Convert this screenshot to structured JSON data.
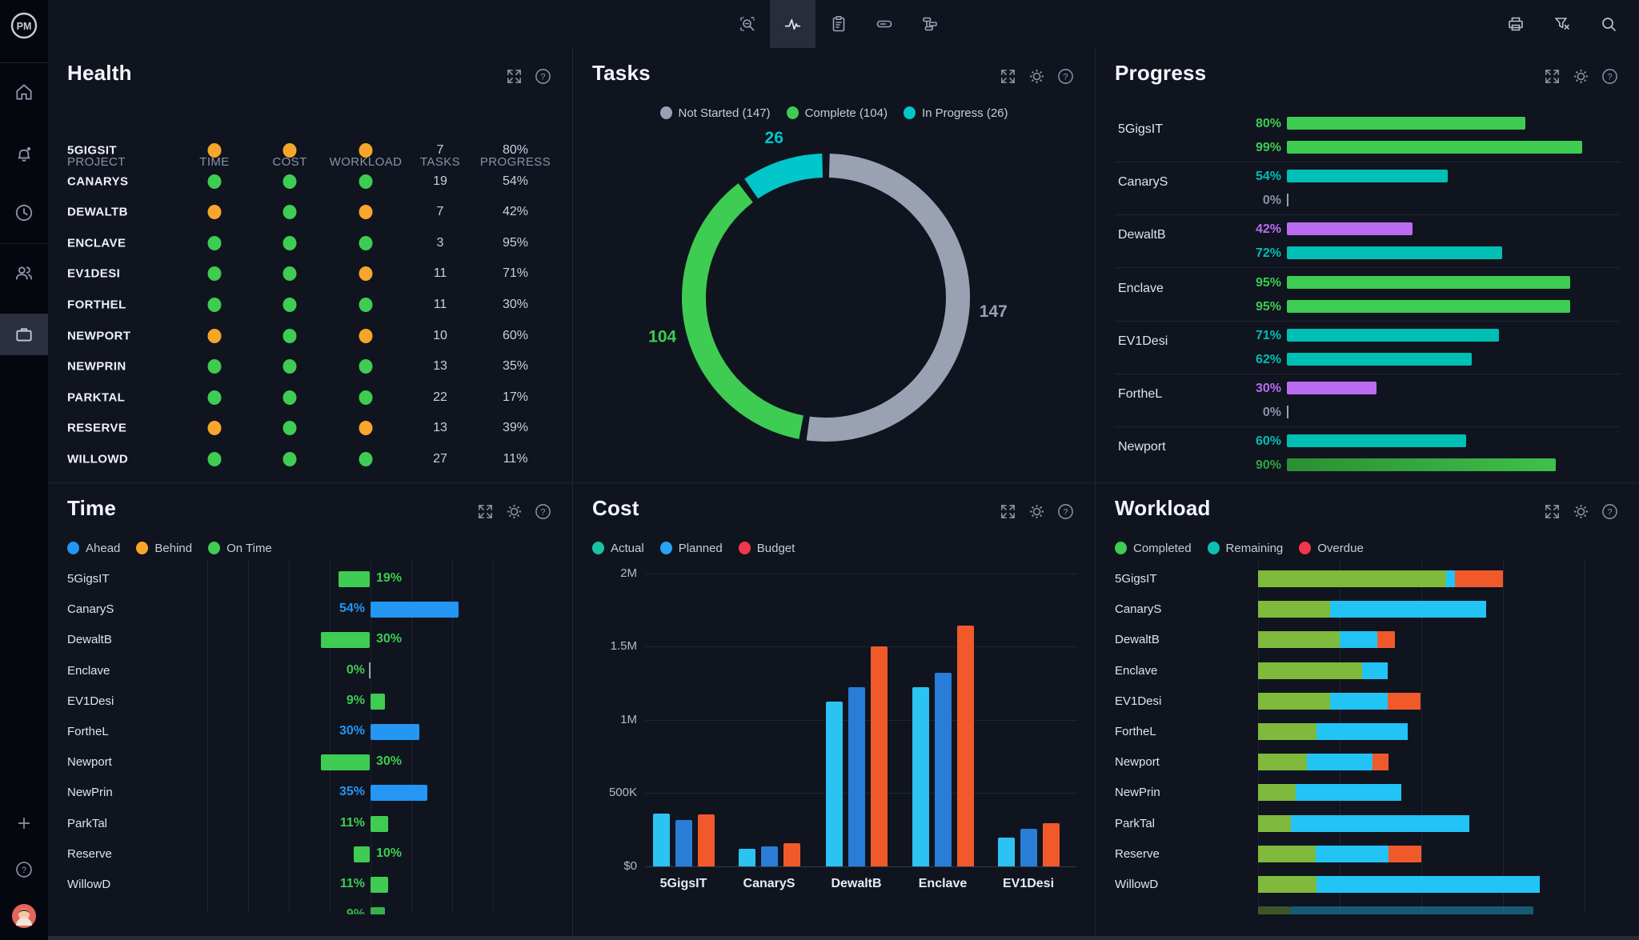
{
  "app": {
    "logo_text": "PM"
  },
  "sidebar": {
    "items": [
      {
        "name": "home"
      },
      {
        "name": "notifications",
        "badge": true
      },
      {
        "name": "time"
      },
      {
        "name": "team"
      },
      {
        "name": "portfolio",
        "active": true
      }
    ],
    "bottom": [
      {
        "name": "add"
      },
      {
        "name": "help"
      },
      {
        "name": "user-avatar"
      }
    ]
  },
  "topbar": {
    "tools": [
      "zoom-select",
      "activity",
      "report",
      "timeline",
      "workflow"
    ],
    "active_tool": "activity",
    "right_tools": [
      "print",
      "clear-filter",
      "search"
    ]
  },
  "colors": {
    "green": "#3ecc52",
    "orange": "#f7a62b",
    "teal": "#00bfb4",
    "purple": "#bb6bf2",
    "darkgreen": "#2fa43c",
    "blue": "#2496f3",
    "gray": "#9aa1b2",
    "cost_actual_bar": "#2cc3f2",
    "cost_planned_bar": "#2a7dd6",
    "cost_budget_bar": "#f05a2b",
    "workload_completed_bar": "#7fba3d",
    "workload_remaining_bar": "#22c3f5",
    "workload_overdue_bar": "#f05a2b",
    "legend_red": "#f4364c",
    "legend_teal_actual": "#17c3a3",
    "legend_blue_planned": "#29a3f5"
  },
  "panels": {
    "health": {
      "title": "Health",
      "columns": [
        "PROJECT",
        "TIME",
        "COST",
        "WORKLOAD",
        "TASKS",
        "PROGRESS"
      ],
      "rows": [
        {
          "project": "5GIGSIT",
          "time": "orange",
          "cost": "orange",
          "workload": "orange",
          "tasks": "7",
          "progress": "80%"
        },
        {
          "project": "CANARYS",
          "time": "green",
          "cost": "green",
          "workload": "green",
          "tasks": "19",
          "progress": "54%"
        },
        {
          "project": "DEWALTB",
          "time": "orange",
          "cost": "green",
          "workload": "orange",
          "tasks": "7",
          "progress": "42%"
        },
        {
          "project": "ENCLAVE",
          "time": "green",
          "cost": "green",
          "workload": "green",
          "tasks": "3",
          "progress": "95%"
        },
        {
          "project": "EV1DESI",
          "time": "green",
          "cost": "green",
          "workload": "orange",
          "tasks": "11",
          "progress": "71%"
        },
        {
          "project": "FORTHEL",
          "time": "green",
          "cost": "green",
          "workload": "green",
          "tasks": "11",
          "progress": "30%"
        },
        {
          "project": "NEWPORT",
          "time": "orange",
          "cost": "green",
          "workload": "orange",
          "tasks": "10",
          "progress": "60%"
        },
        {
          "project": "NEWPRIN",
          "time": "green",
          "cost": "green",
          "workload": "green",
          "tasks": "13",
          "progress": "35%"
        },
        {
          "project": "PARKTAL",
          "time": "green",
          "cost": "green",
          "workload": "green",
          "tasks": "22",
          "progress": "17%"
        },
        {
          "project": "RESERVE",
          "time": "orange",
          "cost": "green",
          "workload": "orange",
          "tasks": "13",
          "progress": "39%"
        },
        {
          "project": "WILLOWD",
          "time": "green",
          "cost": "green",
          "workload": "green",
          "tasks": "27",
          "progress": "11%"
        }
      ]
    },
    "tasks": {
      "title": "Tasks",
      "legend": [
        {
          "label": "Not Started (147)",
          "color": "#9aa1b2"
        },
        {
          "label": "Complete (104)",
          "color": "#3ecc52"
        },
        {
          "label": "In Progress (26)",
          "color": "#00c6c9"
        }
      ]
    },
    "progress": {
      "title": "Progress"
    },
    "time": {
      "title": "Time",
      "legend": [
        {
          "label": "Ahead",
          "color": "#2496f3"
        },
        {
          "label": "Behind",
          "color": "#f7a62b"
        },
        {
          "label": "On Time",
          "color": "#3ecc52"
        }
      ]
    },
    "cost": {
      "title": "Cost",
      "legend": [
        {
          "label": "Actual",
          "color": "#17c3a3"
        },
        {
          "label": "Planned",
          "color": "#29a3f5"
        },
        {
          "label": "Budget",
          "color": "#f4364c"
        }
      ]
    },
    "workload": {
      "title": "Workload",
      "legend": [
        {
          "label": "Completed",
          "color": "#3ecc52"
        },
        {
          "label": "Remaining",
          "color": "#0fbfb4"
        },
        {
          "label": "Overdue",
          "color": "#f4364c"
        }
      ]
    }
  },
  "chart_data": [
    {
      "id": "tasks",
      "type": "pie",
      "donut": true,
      "title": "Tasks",
      "labels": [
        "Not Started",
        "Complete",
        "In Progress"
      ],
      "values": [
        147,
        104,
        26
      ],
      "colors": [
        "#9aa1b2",
        "#3ecc52",
        "#00c6c9"
      ],
      "legend_position": "top",
      "order_clockwise_from_top": [
        "Not Started",
        "Complete",
        "In Progress"
      ]
    },
    {
      "id": "progress",
      "type": "bar",
      "orientation": "horizontal",
      "unit": "%",
      "xlim": [
        0,
        100
      ],
      "categories": [
        "5GigsIT",
        "CanaryS",
        "DewaltB",
        "Enclave",
        "EV1Desi",
        "FortheL",
        "Newport"
      ],
      "series": [
        {
          "name": "bar-top",
          "values": [
            80,
            54,
            42,
            95,
            71,
            30,
            60
          ],
          "colors": [
            "green",
            "teal",
            "purple",
            "green",
            "teal",
            "purple",
            "teal"
          ]
        },
        {
          "name": "bar-bottom",
          "values": [
            99,
            0,
            72,
            95,
            62,
            0,
            90
          ],
          "colors": [
            "green",
            "zero",
            "teal",
            "green",
            "teal",
            "zero",
            "darkgreen"
          ]
        }
      ]
    },
    {
      "id": "time",
      "type": "bar",
      "orientation": "horizontal",
      "diverging": true,
      "unit": "%",
      "rows": [
        {
          "label": "5GigsIT",
          "value": 19,
          "side": "left",
          "color": "green"
        },
        {
          "label": "CanaryS",
          "value": 54,
          "side": "right",
          "color": "blue"
        },
        {
          "label": "DewaltB",
          "value": 30,
          "side": "left",
          "color": "green"
        },
        {
          "label": "Enclave",
          "value": 0,
          "side": "zero",
          "color": "green"
        },
        {
          "label": "EV1Desi",
          "value": 9,
          "side": "right",
          "color": "green"
        },
        {
          "label": "FortheL",
          "value": 30,
          "side": "right",
          "color": "blue"
        },
        {
          "label": "Newport",
          "value": 30,
          "side": "left",
          "color": "green"
        },
        {
          "label": "NewPrin",
          "value": 35,
          "side": "right",
          "color": "blue"
        },
        {
          "label": "ParkTal",
          "value": 11,
          "side": "right",
          "color": "green"
        },
        {
          "label": "Reserve",
          "value": 10,
          "side": "left",
          "color": "green"
        },
        {
          "label": "WillowD",
          "value": 11,
          "side": "right",
          "color": "green"
        },
        {
          "label": "",
          "value": 9,
          "side": "right",
          "color": "green",
          "clipped": true
        }
      ]
    },
    {
      "id": "cost",
      "type": "bar",
      "grouped": true,
      "currency": "USD",
      "categories": [
        "5GigsIT",
        "CanaryS",
        "DewaltB",
        "Enclave",
        "EV1Desi"
      ],
      "series": [
        {
          "name": "Actual",
          "color": "#2cc3f2",
          "values_k": [
            360,
            118,
            1120,
            1220,
            195
          ]
        },
        {
          "name": "Planned",
          "color": "#2a7dd6",
          "values_k": [
            318,
            136,
            1220,
            1320,
            258
          ]
        },
        {
          "name": "Budget",
          "color": "#f05a2b",
          "values_k": [
            355,
            160,
            1500,
            1640,
            295
          ]
        }
      ],
      "ytick_labels": [
        "$0",
        "500K",
        "1M",
        "1.5M",
        "2M"
      ],
      "ylim_k": [
        0,
        2000
      ],
      "grid": true
    },
    {
      "id": "workload",
      "type": "bar",
      "stacked": true,
      "orientation": "horizontal",
      "scale_note": "values are percent of chart axis width",
      "categories": [
        "5GigsIT",
        "CanaryS",
        "DewaltB",
        "Enclave",
        "EV1Desi",
        "FortheL",
        "Newport",
        "NewPrin",
        "ParkTal",
        "Reserve",
        "WillowD"
      ],
      "series": [
        {
          "name": "Completed",
          "color": "#7fba3d",
          "values": [
            57.6,
            22.1,
            25.0,
            31.9,
            22.1,
            17.9,
            15.0,
            11.5,
            10.0,
            17.6,
            17.9
          ]
        },
        {
          "name": "Remaining",
          "color": "#22c3f5",
          "values": [
            2.6,
            47.8,
            11.5,
            7.8,
            17.6,
            27.9,
            20.1,
            32.4,
            54.7,
            22.3,
            68.4
          ]
        },
        {
          "name": "Overdue",
          "color": "#f05a2b",
          "values": [
            14.7,
            0,
            5.4,
            0,
            10.0,
            0,
            4.9,
            0,
            0,
            10.0,
            0
          ]
        }
      ],
      "partial_row": {
        "completed": 9.8,
        "remaining": 74.5
      }
    }
  ]
}
